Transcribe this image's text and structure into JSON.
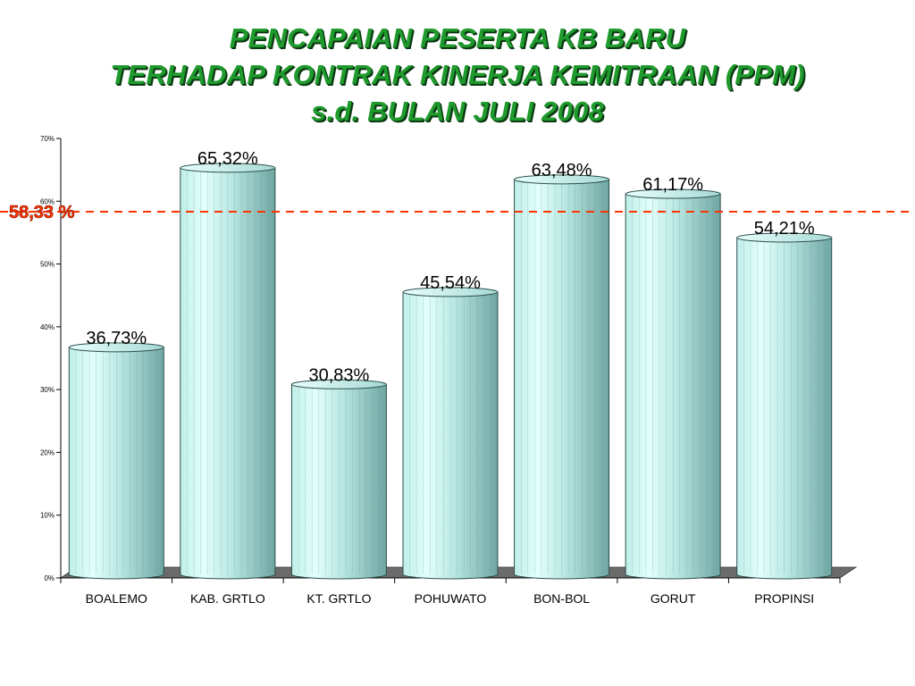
{
  "title_lines": [
    "PENCAPAIAN PESERTA KB BARU",
    "TERHADAP KONTRAK KINERJA KEMITRAAN (PPM)",
    "s.d. BULAN JULI 2008"
  ],
  "colors": {
    "title": "#1f9a2c",
    "bar_light": "#d9fbf6",
    "bar_mid": "#a9ddd8",
    "bar_dark": "#6fa6a2",
    "floor": "#6b6b6b",
    "reference": "#ff3300"
  },
  "chart_data": {
    "type": "bar",
    "style": "3d-cylinder",
    "categories": [
      "BOALEMO",
      "KAB. GRTLO",
      "KT. GRTLO",
      "POHUWATO",
      "BON-BOL",
      "GORUT",
      "PROPINSI"
    ],
    "values": [
      36.73,
      65.32,
      30.83,
      45.54,
      63.48,
      61.17,
      54.21
    ],
    "value_labels": [
      "36,73%",
      "65,32%",
      "30,83%",
      "45,54%",
      "63,48%",
      "61,17%",
      "54,21%"
    ],
    "ylim": [
      0,
      70
    ],
    "y_ticks": [
      0,
      10,
      20,
      30,
      40,
      50,
      60,
      70
    ],
    "y_tick_labels": [
      "0%",
      "10%",
      "20%",
      "30%",
      "40%",
      "50%",
      "60%",
      "70%"
    ],
    "reference_line": {
      "value": 58.33,
      "label": "58,33 %",
      "style": "dashed"
    },
    "grid": false,
    "legend": "none"
  }
}
